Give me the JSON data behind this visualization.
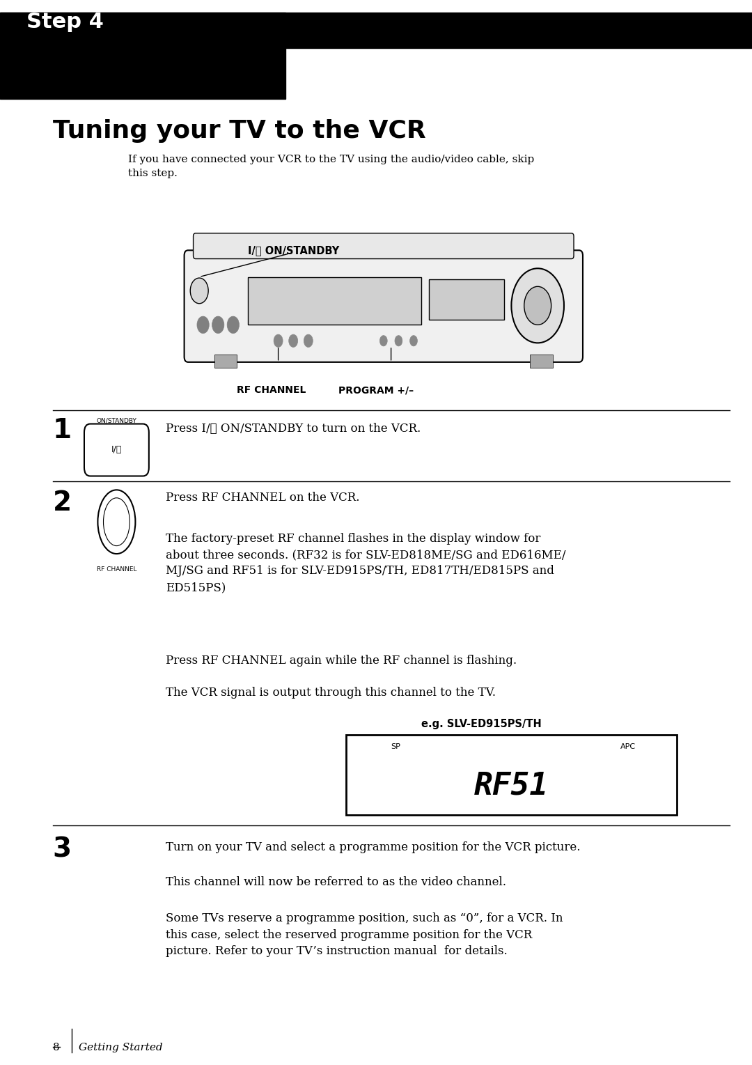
{
  "bg_color": "#ffffff",
  "page_width": 10.8,
  "page_height": 15.29,
  "top_bar_color": "#000000",
  "step_label": "Step 4",
  "main_title": "Tuning your TV to the VCR",
  "intro_text": "If you have connected your VCR to the TV using the audio/video cable, skip\nthis step.",
  "vcr_label_on": "I/⏽ ON/STANDBY",
  "vcr_label_rf": "RF CHANNEL",
  "vcr_label_prog": "PROGRAM +/–",
  "step1_num": "1",
  "step1_icon_label": "ON/STANDBY",
  "step1_icon_text": "I/⏽",
  "step1_text": "Press I/⏽ ON/STANDBY to turn on the VCR.",
  "step2_num": "2",
  "step2_icon_label": "RF CHANNEL",
  "step2_text1": "Press RF CHANNEL on the VCR.",
  "step2_text2": "The factory-preset RF channel flashes in the display window for\nabout three seconds. (RF32 is for SLV-ED818ME/SG and ED616ME/\nMJ/SG and RF51 is for SLV-ED915PS/TH, ED817TH/ED815PS and\nED515PS)",
  "step2_text3": "Press RF CHANNEL again while the RF channel is flashing.",
  "step2_text4": "The VCR signal is output through this channel to the TV.",
  "display_eg_label": "e.g. SLV-ED915PS/TH",
  "display_sp": "SP",
  "display_apc": "APC",
  "display_text": "RF51",
  "step3_num": "3",
  "step3_text1": "Turn on your TV and select a programme position for the VCR picture.",
  "step3_text2": "This channel will now be referred to as the video channel.",
  "step3_text3": "Some TVs reserve a programme position, such as “0”, for a VCR. In\nthis case, select the reserved programme position for the VCR\npicture. Refer to your TV’s instruction manual  for details.",
  "footer_text": "8",
  "footer_label": "Getting Started"
}
